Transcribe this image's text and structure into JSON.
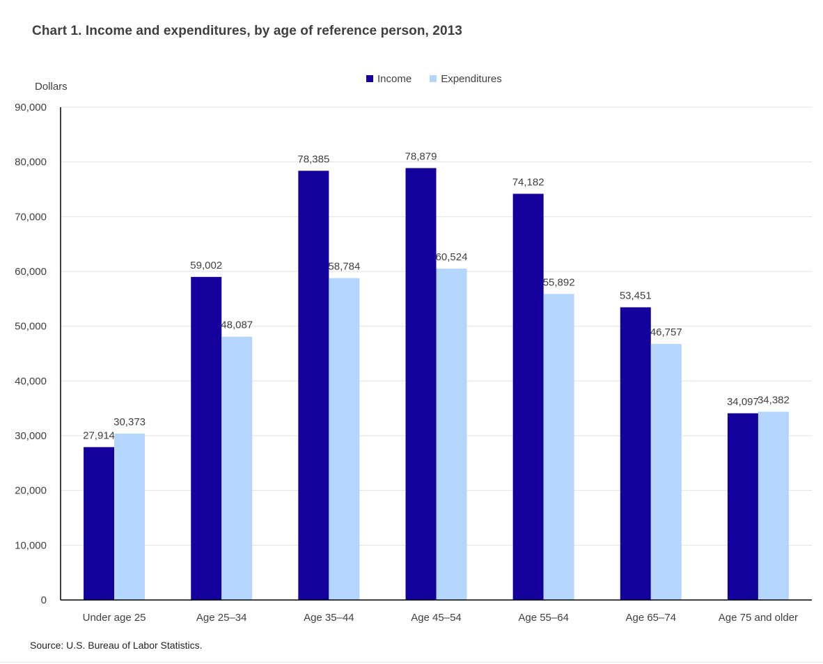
{
  "title": "Chart 1. Income and expenditures, by age of reference person, 2013",
  "y_axis_label": "Dollars",
  "source": "Source: U.S. Bureau of Labor Statistics.",
  "legend": [
    {
      "label": "Income",
      "color": "#14009b"
    },
    {
      "label": "Expenditures",
      "color": "#b4d5fc"
    }
  ],
  "chart_data": {
    "type": "bar",
    "title": "Chart 1. Income and expenditures, by age of reference person, 2013",
    "xlabel": "",
    "ylabel": "Dollars",
    "ylim": [
      0,
      90000
    ],
    "yticks": [
      0,
      10000,
      20000,
      30000,
      40000,
      50000,
      60000,
      70000,
      80000,
      90000
    ],
    "ytick_labels": [
      "0",
      "10,000",
      "20,000",
      "30,000",
      "40,000",
      "50,000",
      "60,000",
      "70,000",
      "80,000",
      "90,000"
    ],
    "grid": true,
    "legend_position": "top-center",
    "categories": [
      "Under age 25",
      "Age 25–34",
      "Age 35–44",
      "Age 45–54",
      "Age 55–64",
      "Age 65–74",
      "Age 75 and older"
    ],
    "series": [
      {
        "name": "Income",
        "color": "#14009b",
        "values": [
          27914,
          59002,
          78385,
          78879,
          74182,
          53451,
          34097
        ],
        "labels": [
          "27,914",
          "59,002",
          "78,385",
          "78,879",
          "74,182",
          "53,451",
          "34,097"
        ]
      },
      {
        "name": "Expenditures",
        "color": "#b4d5fc",
        "values": [
          30373,
          48087,
          58784,
          60524,
          55892,
          46757,
          34382
        ],
        "labels": [
          "30,373",
          "48,087",
          "58,784",
          "60,524",
          "55,892",
          "46,757",
          "34,382"
        ]
      }
    ]
  }
}
